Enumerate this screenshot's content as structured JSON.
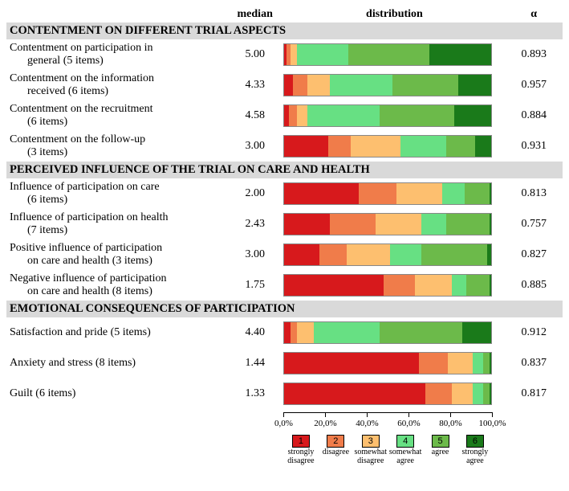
{
  "columns": {
    "median": "median",
    "distribution": "distribution",
    "alpha": "α"
  },
  "colors": {
    "1": "#d7191c",
    "2": "#f07c4a",
    "3": "#fdbf6f",
    "4": "#67e083",
    "5": "#6cba4a",
    "6": "#1a7a1a",
    "section_bg": "#d9d9d9"
  },
  "axis": {
    "ticks": [
      "0,0%",
      "20,0%",
      "40,0%",
      "60,0%",
      "80,0%",
      "100,0%"
    ],
    "positions_pct": [
      0,
      20,
      40,
      60,
      80,
      100
    ]
  },
  "legend": [
    {
      "n": "1",
      "label": "strongly disagree"
    },
    {
      "n": "2",
      "label": "disagree"
    },
    {
      "n": "3",
      "label": "somewhat disagree"
    },
    {
      "n": "4",
      "label": "somewhat agree"
    },
    {
      "n": "5",
      "label": "agree"
    },
    {
      "n": "6",
      "label": "strongly agree"
    }
  ],
  "sections": [
    {
      "title": "CONTENTMENT ON DIFFERENT TRIAL ASPECTS",
      "rows": [
        {
          "l1": "Contentment on participation in",
          "l2": "general (5 items)",
          "median": "5.00",
          "alpha": "0.893",
          "dist": [
            1,
            2,
            3,
            25,
            39,
            30
          ]
        },
        {
          "l1": "Contentment on the information",
          "l2": "received (6 items)",
          "median": "4.33",
          "alpha": "0.957",
          "dist": [
            4,
            7,
            11,
            30,
            32,
            16
          ]
        },
        {
          "l1": "Contentment on the recruitment",
          "l2": "(6 items)",
          "median": "4.58",
          "alpha": "0.884",
          "dist": [
            2,
            4,
            5,
            35,
            36,
            18
          ]
        },
        {
          "l1": "Contentment on the follow-up",
          "l2": "(3 items)",
          "median": "3.00",
          "alpha": "0.931",
          "dist": [
            21,
            11,
            24,
            22,
            14,
            8
          ]
        }
      ]
    },
    {
      "title": "PERCEIVED INFLUENCE OF THE TRIAL ON CARE AND HEALTH",
      "rows": [
        {
          "l1": "Influence of participation on care",
          "l2": "(6 items)",
          "median": "2.00",
          "alpha": "0.813",
          "dist": [
            36,
            18,
            22,
            11,
            12,
            1
          ]
        },
        {
          "l1": "Influence of participation on health",
          "l2": "(7 items)",
          "median": "2.43",
          "alpha": "0.757",
          "dist": [
            22,
            22,
            22,
            12,
            21,
            1
          ]
        },
        {
          "l1": "Positive influence of participation",
          "l2": "on care and health (3 items)",
          "median": "3.00",
          "alpha": "0.827",
          "dist": [
            17,
            13,
            21,
            15,
            32,
            2
          ]
        },
        {
          "l1": "Negative influence of participation",
          "l2": "on care and health (8 items)",
          "median": "1.75",
          "alpha": "0.885",
          "dist": [
            48,
            15,
            18,
            7,
            11,
            1
          ]
        }
      ]
    },
    {
      "title": "EMOTIONAL CONSEQUENCES OF PARTICIPATION",
      "rows": [
        {
          "l1": "Satisfaction and pride (5 items)",
          "l2": "",
          "median": "4.40",
          "alpha": "0.912",
          "dist": [
            3,
            3,
            8,
            32,
            40,
            14
          ]
        },
        {
          "l1": "Anxiety and stress (8 items)",
          "l2": "",
          "median": "1.44",
          "alpha": "0.837",
          "dist": [
            65,
            14,
            12,
            5,
            3,
            1
          ]
        },
        {
          "l1": "Guilt (6 items)",
          "l2": "",
          "median": "1.33",
          "alpha": "0.817",
          "dist": [
            68,
            13,
            10,
            5,
            3,
            1
          ]
        }
      ]
    }
  ]
}
